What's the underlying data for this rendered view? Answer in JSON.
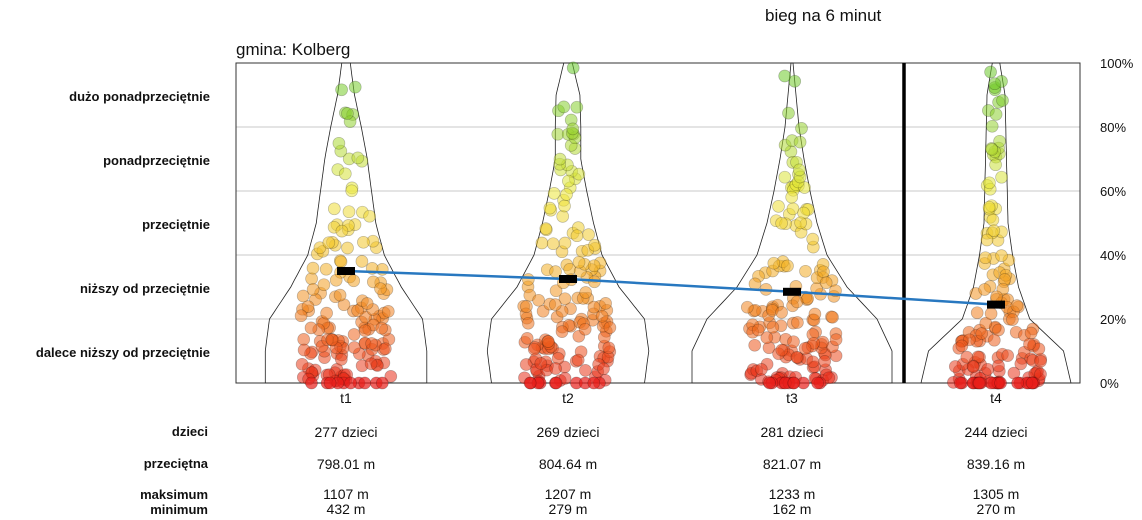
{
  "title": "bieg na 6 minut",
  "subtitle": "gmina: Kolberg",
  "chart_data": {
    "type": "scatter",
    "subtype": "violin-jitter",
    "y_axis": {
      "ticks": [
        "0%",
        "20%",
        "40%",
        "60%",
        "80%",
        "100%"
      ],
      "range": [
        0,
        100
      ],
      "position": "right"
    },
    "bands": [
      {
        "label": "dalece niższy od przeciętnie",
        "from": 0,
        "to": 20,
        "color": "#e8341f"
      },
      {
        "label": "niższy od przeciętnie",
        "from": 20,
        "to": 40,
        "color": "#f07c1e"
      },
      {
        "label": "przeciętnie",
        "from": 40,
        "to": 60,
        "color": "#f5d02a"
      },
      {
        "label": "ponadprzeciętnie",
        "from": 60,
        "to": 80,
        "color": "#d8e838"
      },
      {
        "label": "dużo ponadprzeciętnie",
        "from": 80,
        "to": 100,
        "color": "#7cd12a"
      }
    ],
    "categories": [
      "t1",
      "t2",
      "t3",
      "t4"
    ],
    "mean_percentile": [
      35,
      32.5,
      28.5,
      24.5
    ],
    "mean_line_color": "#2878c0",
    "separator_after": "t3",
    "grid": true
  },
  "stats_table": {
    "labels": {
      "children": "dzieci",
      "average": "przeciętna",
      "max": "maksimum",
      "min": "minimum"
    },
    "columns": [
      {
        "children": "277 dzieci",
        "average": "798.01 m",
        "max": "1107 m",
        "min": "432 m"
      },
      {
        "children": "269 dzieci",
        "average": "804.64 m",
        "max": "1207 m",
        "min": "279 m"
      },
      {
        "children": "281 dzieci",
        "average": "821.07 m",
        "max": "1233 m",
        "min": "162 m"
      },
      {
        "children": "244 dzieci",
        "average": "839.16 m",
        "max": "1305 m",
        "min": "270 m"
      }
    ]
  }
}
